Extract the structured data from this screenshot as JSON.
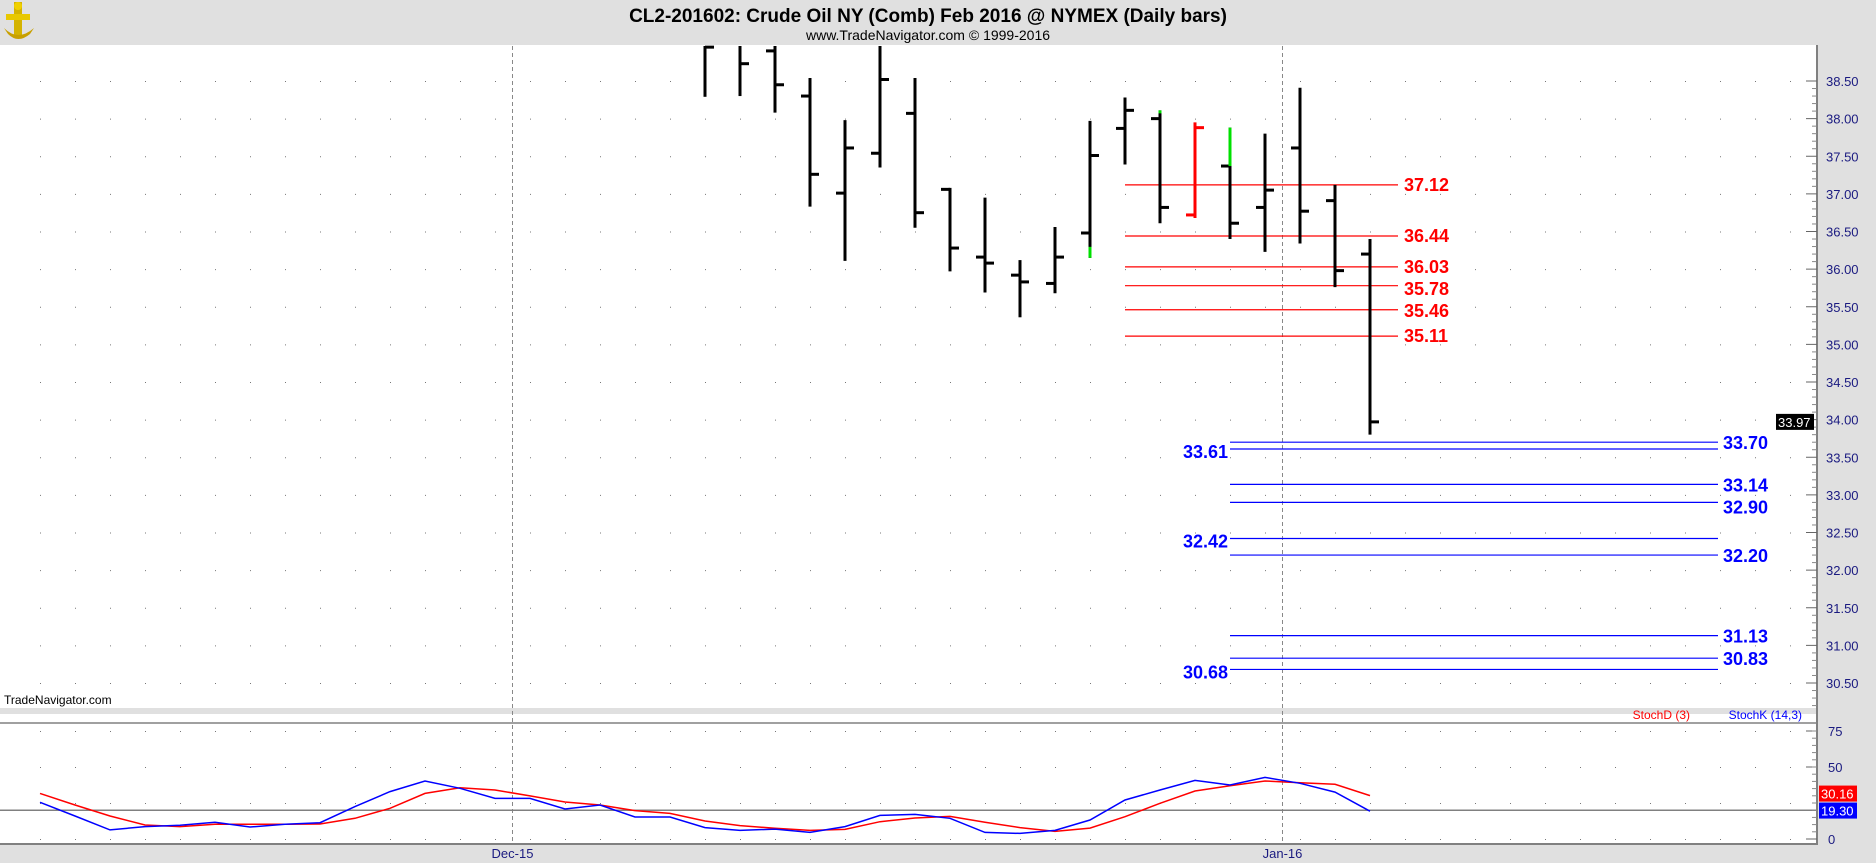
{
  "header": {
    "title": "CL2-201602:  Crude Oil NY (Comb) Feb 2016 @ NYMEX  (Daily bars)",
    "subtitle": "www.TradeNavigator.com © 1999-2016",
    "watermark": "TradeNavigator.com"
  },
  "colors": {
    "up_tail": "#00e000",
    "red_bar": "#ff0000",
    "resistance": "#ff0000",
    "support": "#0000ff",
    "stochD": "#ff0000",
    "stochK": "#0000ff",
    "axis_text": "#1a1a80",
    "panel_bg": "#e0e0e0"
  },
  "chart_data": [
    {
      "type": "ohlc",
      "title": "CL2-201602 Daily bars",
      "ylim": [
        30.2,
        38.95
      ],
      "y_ticks": [
        "38.50",
        "38.00",
        "37.50",
        "37.00",
        "36.50",
        "36.00",
        "35.50",
        "35.00",
        "34.50",
        "34.00",
        "33.50",
        "33.00",
        "32.50",
        "32.00",
        "31.50",
        "31.00",
        "30.50"
      ],
      "x_labels": [
        {
          "label": "Dec-15",
          "at_bar": 13.5
        },
        {
          "label": "Jan-16",
          "at_bar": 35.5
        }
      ],
      "first_visible_bar": 19,
      "bars": [
        {
          "i": 19,
          "o": 39.0,
          "h": 39.2,
          "l": 38.29,
          "c": 38.95
        },
        {
          "i": 20,
          "o": 39.0,
          "h": 39.2,
          "l": 38.3,
          "c": 38.73
        },
        {
          "i": 21,
          "o": 38.9,
          "h": 39.2,
          "l": 38.08,
          "c": 38.45
        },
        {
          "i": 22,
          "o": 38.3,
          "h": 38.54,
          "l": 36.83,
          "c": 37.26
        },
        {
          "i": 23,
          "o": 37.01,
          "h": 37.98,
          "l": 36.11,
          "c": 37.61
        },
        {
          "i": 24,
          "o": 37.54,
          "h": 39.2,
          "l": 37.35,
          "c": 38.52
        },
        {
          "i": 25,
          "o": 38.07,
          "h": 38.54,
          "l": 36.55,
          "c": 36.75
        },
        {
          "i": 26,
          "o": 37.06,
          "h": 37.08,
          "l": 35.97,
          "c": 36.28
        },
        {
          "i": 27,
          "o": 36.16,
          "h": 36.95,
          "l": 35.69,
          "c": 36.08
        },
        {
          "i": 28,
          "o": 35.92,
          "h": 36.12,
          "l": 35.36,
          "c": 35.83
        },
        {
          "i": 29,
          "o": 35.81,
          "h": 36.56,
          "l": 35.68,
          "c": 36.16
        },
        {
          "i": 30,
          "o": 36.48,
          "h": 37.97,
          "l": 36.15,
          "c": 37.51,
          "tail": "low-green"
        },
        {
          "i": 31,
          "o": 37.87,
          "h": 38.28,
          "l": 37.39,
          "c": 38.11
        },
        {
          "i": 32,
          "o": 38.0,
          "h": 38.11,
          "l": 36.61,
          "c": 36.82,
          "tail": "high-green"
        },
        {
          "i": 33,
          "o": 36.72,
          "h": 37.95,
          "l": 36.68,
          "c": 37.88,
          "color": "red"
        },
        {
          "i": 34,
          "o": 37.37,
          "h": 37.88,
          "l": 36.4,
          "c": 36.61,
          "tail": "high-green-long"
        },
        {
          "i": 35,
          "o": 36.82,
          "h": 37.8,
          "l": 36.23,
          "c": 37.05
        },
        {
          "i": 36,
          "o": 37.61,
          "h": 38.41,
          "l": 36.34,
          "c": 36.77
        },
        {
          "i": 37,
          "o": 36.91,
          "h": 37.12,
          "l": 35.76,
          "c": 35.98
        },
        {
          "i": 38,
          "o": 36.2,
          "h": 36.4,
          "l": 33.8,
          "c": 33.97
        }
      ],
      "last_price": "33.97",
      "resistance_levels": [
        "37.12",
        "36.44",
        "36.03",
        "35.78",
        "35.46",
        "35.11"
      ],
      "support_levels": [
        {
          "value": "33.70",
          "side": "right"
        },
        {
          "value": "33.61",
          "side": "left"
        },
        {
          "value": "33.14",
          "side": "right"
        },
        {
          "value": "32.90",
          "side": "right"
        },
        {
          "value": "32.42",
          "side": "left"
        },
        {
          "value": "32.20",
          "side": "right"
        },
        {
          "value": "31.13",
          "side": "right"
        },
        {
          "value": "30.83",
          "side": "right"
        },
        {
          "value": "30.68",
          "side": "left"
        }
      ]
    },
    {
      "type": "line",
      "title": "Stochastic",
      "ylim": [
        0,
        100
      ],
      "y_ticks": [
        "75",
        "50",
        "0"
      ],
      "reference_level": 20,
      "legend": {
        "stochD": "StochD (3)",
        "stochK": "StochK (14,3)",
        "placement": "top-right"
      },
      "last_values": {
        "stochD": "30.16",
        "stochK": "19.30"
      },
      "series": [
        {
          "name": "StochK (14,3)",
          "values": [
            25.5,
            16,
            6.3,
            8.6,
            9.5,
            11.6,
            8.3,
            10.2,
            11.3,
            22.5,
            32.9,
            40.3,
            35.2,
            28.2,
            28.2,
            20.8,
            23.6,
            15.3,
            15.3,
            7.9,
            6.0,
            6.9,
            4.6,
            8.6,
            16.4,
            17.1,
            14.4,
            4.6,
            3.9,
            6.0,
            13.2,
            27.1,
            34.0,
            40.7,
            37.5,
            42.8,
            38.7,
            32.6,
            19.3
          ]
        },
        {
          "name": "StochD (3)",
          "values": [
            31.7,
            23.6,
            16,
            9.7,
            8.6,
            10.2,
            10.2,
            10.2,
            10.4,
            14.4,
            21.3,
            31.7,
            35.6,
            34,
            29.9,
            25.7,
            23.6,
            19.7,
            17.8,
            12.5,
            9.3,
            7.4,
            6.0,
            6.7,
            12,
            14.6,
            15.7,
            11.6,
            7.9,
            5.3,
            7.6,
            15.5,
            24.8,
            33.3,
            37,
            40.3,
            39.1,
            38,
            30.16
          ]
        }
      ]
    }
  ]
}
